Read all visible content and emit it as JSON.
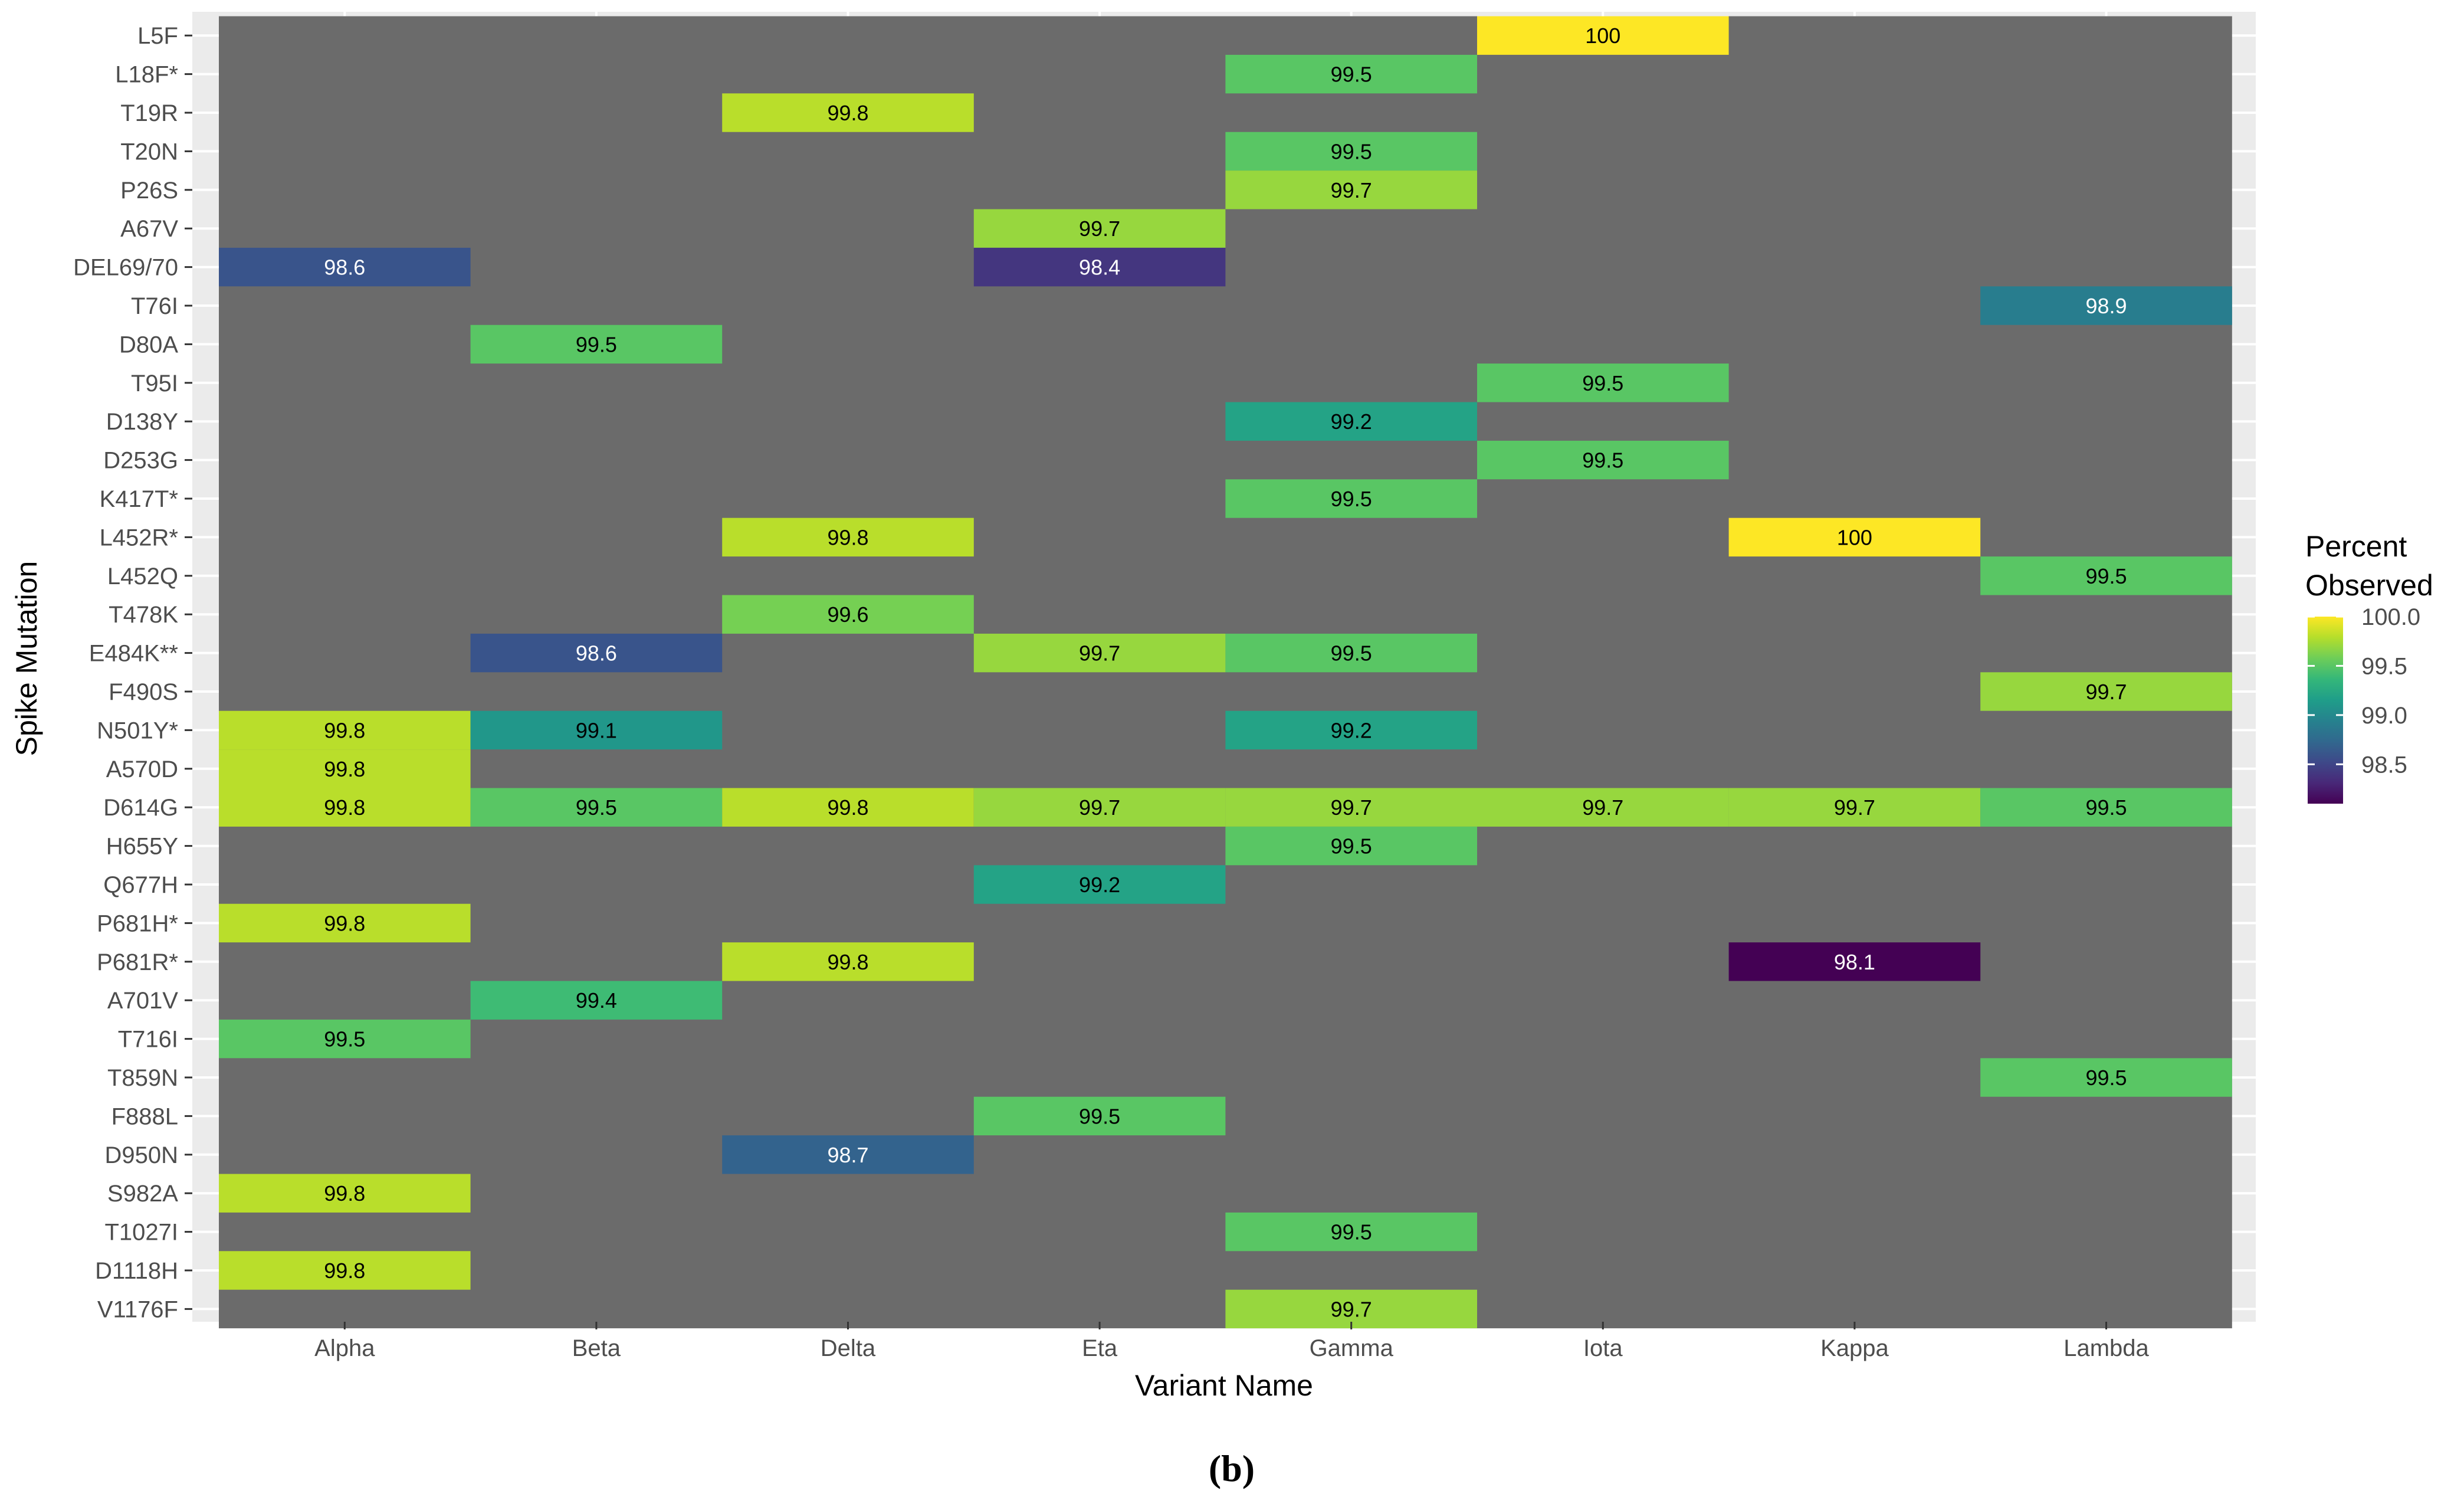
{
  "chart_data": {
    "type": "heatmap",
    "xlabel": "Variant Name",
    "ylabel": "Spike Mutation",
    "x_categories": [
      "Alpha",
      "Beta",
      "Delta",
      "Eta",
      "Gamma",
      "Iota",
      "Kappa",
      "Lambda"
    ],
    "y_categories": [
      "L5F",
      "L18F*",
      "T19R",
      "T20N",
      "P26S",
      "A67V",
      "DEL69/70",
      "T76I",
      "D80A",
      "T95I",
      "D138Y",
      "D253G",
      "K417T*",
      "L452R*",
      "L452Q",
      "T478K",
      "E484K**",
      "F490S",
      "N501Y*",
      "A570D",
      "D614G",
      "H655Y",
      "Q677H",
      "P681H*",
      "P681R*",
      "A701V",
      "T716I",
      "T859N",
      "F888L",
      "D950N",
      "S982A",
      "T1027I",
      "D1118H",
      "V1176F"
    ],
    "cells": [
      {
        "y": "L5F",
        "x": "Iota",
        "value": 100,
        "label": "100"
      },
      {
        "y": "L18F*",
        "x": "Gamma",
        "value": 99.5,
        "label": "99.5"
      },
      {
        "y": "T19R",
        "x": "Delta",
        "value": 99.8,
        "label": "99.8"
      },
      {
        "y": "T20N",
        "x": "Gamma",
        "value": 99.5,
        "label": "99.5"
      },
      {
        "y": "P26S",
        "x": "Gamma",
        "value": 99.7,
        "label": "99.7"
      },
      {
        "y": "A67V",
        "x": "Eta",
        "value": 99.7,
        "label": "99.7"
      },
      {
        "y": "DEL69/70",
        "x": "Alpha",
        "value": 98.6,
        "label": "98.6"
      },
      {
        "y": "DEL69/70",
        "x": "Eta",
        "value": 98.4,
        "label": "98.4"
      },
      {
        "y": "T76I",
        "x": "Lambda",
        "value": 98.9,
        "label": "98.9"
      },
      {
        "y": "D80A",
        "x": "Beta",
        "value": 99.5,
        "label": "99.5"
      },
      {
        "y": "T95I",
        "x": "Iota",
        "value": 99.5,
        "label": "99.5"
      },
      {
        "y": "D138Y",
        "x": "Gamma",
        "value": 99.2,
        "label": "99.2"
      },
      {
        "y": "D253G",
        "x": "Iota",
        "value": 99.5,
        "label": "99.5"
      },
      {
        "y": "K417T*",
        "x": "Gamma",
        "value": 99.5,
        "label": "99.5"
      },
      {
        "y": "L452R*",
        "x": "Delta",
        "value": 99.8,
        "label": "99.8"
      },
      {
        "y": "L452R*",
        "x": "Kappa",
        "value": 100,
        "label": "100"
      },
      {
        "y": "L452Q",
        "x": "Lambda",
        "value": 99.5,
        "label": "99.5"
      },
      {
        "y": "T478K",
        "x": "Delta",
        "value": 99.6,
        "label": "99.6"
      },
      {
        "y": "E484K**",
        "x": "Beta",
        "value": 98.6,
        "label": "98.6"
      },
      {
        "y": "E484K**",
        "x": "Eta",
        "value": 99.7,
        "label": "99.7"
      },
      {
        "y": "E484K**",
        "x": "Gamma",
        "value": 99.5,
        "label": "99.5"
      },
      {
        "y": "F490S",
        "x": "Lambda",
        "value": 99.7,
        "label": "99.7"
      },
      {
        "y": "N501Y*",
        "x": "Alpha",
        "value": 99.8,
        "label": "99.8"
      },
      {
        "y": "N501Y*",
        "x": "Beta",
        "value": 99.1,
        "label": "99.1"
      },
      {
        "y": "N501Y*",
        "x": "Gamma",
        "value": 99.2,
        "label": "99.2"
      },
      {
        "y": "A570D",
        "x": "Alpha",
        "value": 99.8,
        "label": "99.8"
      },
      {
        "y": "D614G",
        "x": "Alpha",
        "value": 99.8,
        "label": "99.8"
      },
      {
        "y": "D614G",
        "x": "Beta",
        "value": 99.5,
        "label": "99.5"
      },
      {
        "y": "D614G",
        "x": "Delta",
        "value": 99.8,
        "label": "99.8"
      },
      {
        "y": "D614G",
        "x": "Eta",
        "value": 99.7,
        "label": "99.7"
      },
      {
        "y": "D614G",
        "x": "Gamma",
        "value": 99.7,
        "label": "99.7"
      },
      {
        "y": "D614G",
        "x": "Iota",
        "value": 99.7,
        "label": "99.7"
      },
      {
        "y": "D614G",
        "x": "Kappa",
        "value": 99.7,
        "label": "99.7"
      },
      {
        "y": "D614G",
        "x": "Lambda",
        "value": 99.5,
        "label": "99.5"
      },
      {
        "y": "H655Y",
        "x": "Gamma",
        "value": 99.5,
        "label": "99.5"
      },
      {
        "y": "Q677H",
        "x": "Eta",
        "value": 99.2,
        "label": "99.2"
      },
      {
        "y": "P681H*",
        "x": "Alpha",
        "value": 99.8,
        "label": "99.8"
      },
      {
        "y": "P681R*",
        "x": "Delta",
        "value": 99.8,
        "label": "99.8"
      },
      {
        "y": "P681R*",
        "x": "Kappa",
        "value": 98.1,
        "label": "98.1"
      },
      {
        "y": "A701V",
        "x": "Beta",
        "value": 99.4,
        "label": "99.4"
      },
      {
        "y": "T716I",
        "x": "Alpha",
        "value": 99.5,
        "label": "99.5"
      },
      {
        "y": "T859N",
        "x": "Lambda",
        "value": 99.5,
        "label": "99.5"
      },
      {
        "y": "F888L",
        "x": "Eta",
        "value": 99.5,
        "label": "99.5"
      },
      {
        "y": "D950N",
        "x": "Delta",
        "value": 98.7,
        "label": "98.7"
      },
      {
        "y": "S982A",
        "x": "Alpha",
        "value": 99.8,
        "label": "99.8"
      },
      {
        "y": "T1027I",
        "x": "Gamma",
        "value": 99.5,
        "label": "99.5"
      },
      {
        "y": "D1118H",
        "x": "Alpha",
        "value": 99.8,
        "label": "99.8"
      },
      {
        "y": "V1176F",
        "x": "Gamma",
        "value": 99.7,
        "label": "99.7"
      }
    ],
    "legend": {
      "title": "Percent\nObserved",
      "title_lines": [
        "Percent",
        "Observed"
      ],
      "position": "right",
      "ticks": [
        100.0,
        99.5,
        99.0,
        98.5
      ],
      "tick_labels": [
        "100.0",
        "99.5",
        "99.0",
        "98.5"
      ],
      "range": [
        98.1,
        100
      ]
    },
    "colors": {
      "missing": "#6b6b6b",
      "panel_background": "#ebebeb",
      "palette": "viridis"
    }
  },
  "caption": "(b)"
}
